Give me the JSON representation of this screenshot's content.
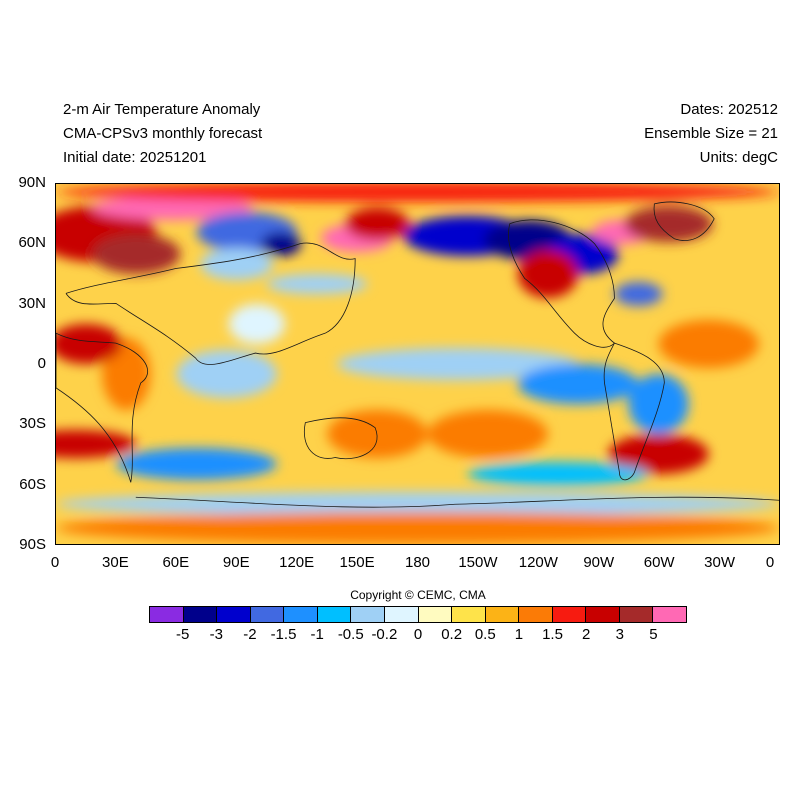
{
  "header": {
    "title": "2-m Air Temperature Anomaly",
    "model": "CMA-CPSv3 monthly forecast",
    "initial_date": "Initial date: 20251201",
    "dates": "Dates: 202512",
    "ensemble": "Ensemble Size = 21",
    "units": "Units: degC"
  },
  "axes": {
    "lat_ticks": [
      "90N",
      "60N",
      "30N",
      "0",
      "30S",
      "60S",
      "90S"
    ],
    "lon_ticks": [
      "0",
      "30E",
      "60E",
      "90E",
      "120E",
      "150E",
      "180",
      "150W",
      "120W",
      "90W",
      "60W",
      "30W",
      "0"
    ]
  },
  "copyright": "Copyright © CEMC, CMA",
  "colorbar": {
    "colors": [
      "#8a2be2",
      "#00008b",
      "#0000cd",
      "#4169e1",
      "#1e90ff",
      "#00bfff",
      "#9fd0f5",
      "#dff5ff",
      "#fffbc0",
      "#fee34a",
      "#fcb316",
      "#fb7b06",
      "#f71b10",
      "#c80000",
      "#a52a2a",
      "#ff69b4"
    ],
    "labels": [
      "-5",
      "-3",
      "-2",
      "-1.5",
      "-1",
      "-0.5",
      "-0.2",
      "0",
      "0.2",
      "0.5",
      "1",
      "1.5",
      "2",
      "3",
      "5"
    ]
  },
  "map": {
    "blobs": [
      {
        "lon": 20,
        "lat": 65,
        "rx": 30,
        "ry": 14,
        "color": "#c80000"
      },
      {
        "lon": 40,
        "lat": 55,
        "rx": 22,
        "ry": 10,
        "color": "#a52a2a"
      },
      {
        "lon": 58,
        "lat": 78,
        "rx": 40,
        "ry": 6,
        "color": "#ff69b4"
      },
      {
        "lon": 95,
        "lat": 66,
        "rx": 25,
        "ry": 10,
        "color": "#4169e1"
      },
      {
        "lon": 112,
        "lat": 60,
        "rx": 10,
        "ry": 6,
        "color": "#00008b"
      },
      {
        "lon": 90,
        "lat": 50,
        "rx": 18,
        "ry": 8,
        "color": "#9fd0f5"
      },
      {
        "lon": 150,
        "lat": 63,
        "rx": 18,
        "ry": 7,
        "color": "#ff69b4"
      },
      {
        "lon": 160,
        "lat": 70,
        "rx": 16,
        "ry": 8,
        "color": "#c80000"
      },
      {
        "lon": 205,
        "lat": 64,
        "rx": 32,
        "ry": 10,
        "color": "#0000cd"
      },
      {
        "lon": 235,
        "lat": 62,
        "rx": 22,
        "ry": 10,
        "color": "#00008b"
      },
      {
        "lon": 262,
        "lat": 55,
        "rx": 18,
        "ry": 10,
        "color": "#0000cd"
      },
      {
        "lon": 245,
        "lat": 45,
        "rx": 15,
        "ry": 12,
        "color": "#c80000"
      },
      {
        "lon": 282,
        "lat": 66,
        "rx": 15,
        "ry": 6,
        "color": "#ff69b4"
      },
      {
        "lon": 305,
        "lat": 70,
        "rx": 22,
        "ry": 9,
        "color": "#a52a2a"
      },
      {
        "lon": 290,
        "lat": 35,
        "rx": 12,
        "ry": 6,
        "color": "#4169e1"
      },
      {
        "lon": 130,
        "lat": 40,
        "rx": 25,
        "ry": 5,
        "color": "#9fd0f5"
      },
      {
        "lon": 200,
        "lat": 0,
        "rx": 60,
        "ry": 8,
        "color": "#9fd0f5"
      },
      {
        "lon": 260,
        "lat": -10,
        "rx": 30,
        "ry": 10,
        "color": "#1e90ff"
      },
      {
        "lon": 85,
        "lat": -5,
        "rx": 25,
        "ry": 12,
        "color": "#9fd0f5"
      },
      {
        "lon": 35,
        "lat": -5,
        "rx": 12,
        "ry": 18,
        "color": "#fb7b06"
      },
      {
        "lon": 100,
        "lat": 20,
        "rx": 14,
        "ry": 10,
        "color": "#dff5ff"
      },
      {
        "lon": 300,
        "lat": -20,
        "rx": 15,
        "ry": 15,
        "color": "#1e90ff"
      },
      {
        "lon": 325,
        "lat": 10,
        "rx": 25,
        "ry": 12,
        "color": "#fb7b06"
      },
      {
        "lon": 15,
        "lat": 10,
        "rx": 18,
        "ry": 10,
        "color": "#c80000"
      },
      {
        "lon": 10,
        "lat": -40,
        "rx": 30,
        "ry": 7,
        "color": "#c80000"
      },
      {
        "lon": 160,
        "lat": -35,
        "rx": 25,
        "ry": 12,
        "color": "#fb7b06"
      },
      {
        "lon": 215,
        "lat": -35,
        "rx": 30,
        "ry": 12,
        "color": "#fb7b06"
      },
      {
        "lon": 300,
        "lat": -45,
        "rx": 25,
        "ry": 10,
        "color": "#c80000"
      },
      {
        "lon": 70,
        "lat": -50,
        "rx": 40,
        "ry": 8,
        "color": "#1e90ff"
      },
      {
        "lon": 250,
        "lat": -55,
        "rx": 45,
        "ry": 6,
        "color": "#00bfff"
      },
      {
        "lon": 180,
        "lat": -70,
        "rx": 180,
        "ry": 6,
        "color": "#9fd0f5"
      },
      {
        "lon": 180,
        "lat": -82,
        "rx": 180,
        "ry": 8,
        "color": "#fb7b06"
      },
      {
        "lon": 180,
        "lat": 86,
        "rx": 180,
        "ry": 5,
        "color": "#f71b10"
      }
    ]
  }
}
